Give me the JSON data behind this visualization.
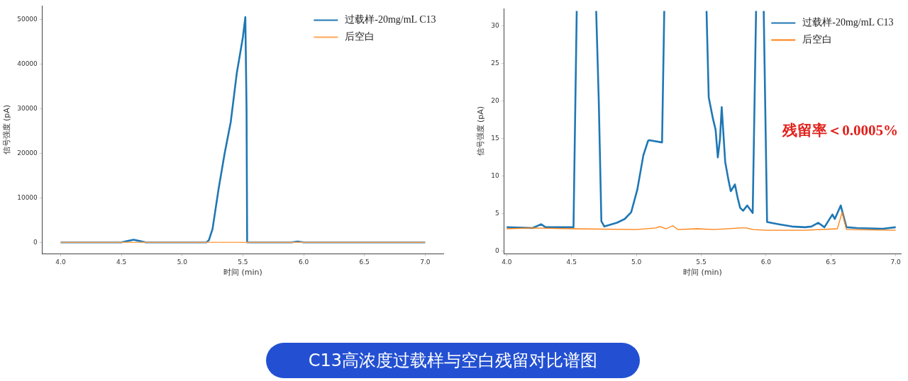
{
  "chart_data": [
    {
      "type": "line",
      "xlabel": "时间 (min)",
      "ylabel": "信号强度 (pA)",
      "annotations": [
        "C13高浓度过载样与空白残留对比谱图"
      ],
      "xlim": [
        3.85,
        7.15
      ],
      "ylim": [
        -2500,
        53000
      ],
      "xticks": [
        {
          "value": 4,
          "label": "4.0"
        },
        {
          "value": 4.5,
          "label": "4.5"
        },
        {
          "value": 5,
          "label": "5.0"
        },
        {
          "value": 5.5,
          "label": "5.5"
        },
        {
          "value": 6,
          "label": "6.0"
        },
        {
          "value": 6.5,
          "label": "6.5"
        },
        {
          "value": 7,
          "label": "7.0"
        }
      ],
      "yticks": [
        0,
        10000,
        20000,
        30000,
        40000,
        50000
      ],
      "grid": false,
      "legend": "top right",
      "marker": "none",
      "line_style": "solid",
      "series": [
        {
          "name": "过载样-20mg/mL C13",
          "color": "#1f77b4",
          "x": [
            4.0,
            4.5,
            4.55,
            4.6,
            4.65,
            4.7,
            5.0,
            5.2,
            5.22,
            5.25,
            5.3,
            5.35,
            5.4,
            5.45,
            5.5,
            5.52,
            5.53,
            5.535,
            5.6,
            5.9,
            5.95,
            6.0,
            7.0
          ],
          "values": [
            0,
            0,
            300,
            600,
            300,
            0,
            0,
            0,
            500,
            3000,
            12000,
            20000,
            27000,
            38000,
            46000,
            50500,
            30000,
            0,
            0,
            0,
            200,
            0,
            0
          ]
        },
        {
          "name": "后空白",
          "color": "#ffa657",
          "x": [
            4.0,
            7.0
          ],
          "values": [
            0,
            0
          ]
        }
      ]
    },
    {
      "type": "line",
      "xlabel": "时间 (min)",
      "ylabel": "信号强度 (pA)",
      "annotations": [
        "残留率＜0.0005%"
      ],
      "xlim": [
        3.98,
        7.04
      ],
      "ylim": [
        -0.3,
        32.3
      ],
      "xticks": [
        {
          "value": 4,
          "label": "4.0"
        },
        {
          "value": 4.5,
          "label": "4.5"
        },
        {
          "value": 5,
          "label": "5.0"
        },
        {
          "value": 5.5,
          "label": "5.5"
        },
        {
          "value": 6,
          "label": "6.0"
        },
        {
          "value": 6.5,
          "label": "6.5"
        },
        {
          "value": 7,
          "label": "7.0"
        }
      ],
      "yticks": [
        0,
        5,
        10,
        15,
        20,
        25,
        30
      ],
      "grid": false,
      "legend": "top right",
      "marker": "none",
      "line_style": "solid",
      "series": [
        {
          "name": "过载样-20mg/mL C13",
          "color": "#1f77b4",
          "x": [
            4.0,
            4.2,
            4.265,
            4.3,
            4.515,
            4.54,
            4.6,
            4.69,
            4.71,
            4.73,
            4.753,
            4.85,
            4.91,
            4.96,
            5.007,
            5.054,
            5.09,
            5.1,
            5.198,
            5.215,
            5.3,
            5.541,
            5.558,
            5.59,
            5.611,
            5.628,
            5.645,
            5.658,
            5.685,
            5.71,
            5.728,
            5.76,
            5.78,
            5.8,
            5.823,
            5.855,
            5.897,
            5.923,
            5.95,
            5.982,
            6.008,
            6.1,
            6.2,
            6.3,
            6.35,
            6.402,
            6.45,
            6.512,
            6.53,
            6.576,
            6.6,
            6.62,
            6.7,
            6.9,
            7.0
          ],
          "values": [
            3.2,
            3.1,
            3.6,
            3.2,
            3.2,
            32,
            null,
            32,
            20,
            4,
            3.3,
            3.8,
            4.3,
            5.2,
            8.2,
            12.8,
            14.7,
            14.8,
            14.5,
            32,
            null,
            32,
            20.5,
            17.7,
            16.2,
            12.5,
            15,
            19.2,
            11.9,
            9.5,
            8,
            8.9,
            7.2,
            5.8,
            5.4,
            6.1,
            5.1,
            32,
            null,
            32,
            3.9,
            3.6,
            3.3,
            3.2,
            3.3,
            3.8,
            3.2,
            4.9,
            4.3,
            6.1,
            4.5,
            3.2,
            3.1,
            3.0,
            3.2
          ]
        },
        {
          "name": "后空白",
          "color": "#ff7f0e",
          "x": [
            4.0,
            4.2,
            4.5,
            5.0,
            5.15,
            5.18,
            5.23,
            5.28,
            5.32,
            5.47,
            5.6,
            5.8,
            5.85,
            5.9,
            6.0,
            6.3,
            6.55,
            6.587,
            6.62,
            7.0
          ],
          "values": [
            3.0,
            3.1,
            3.0,
            2.9,
            3.1,
            3.3,
            3.0,
            3.4,
            2.9,
            3.0,
            2.9,
            3.1,
            3.1,
            2.9,
            2.8,
            2.8,
            3.0,
            5.2,
            2.9,
            2.8
          ]
        }
      ]
    }
  ]
}
